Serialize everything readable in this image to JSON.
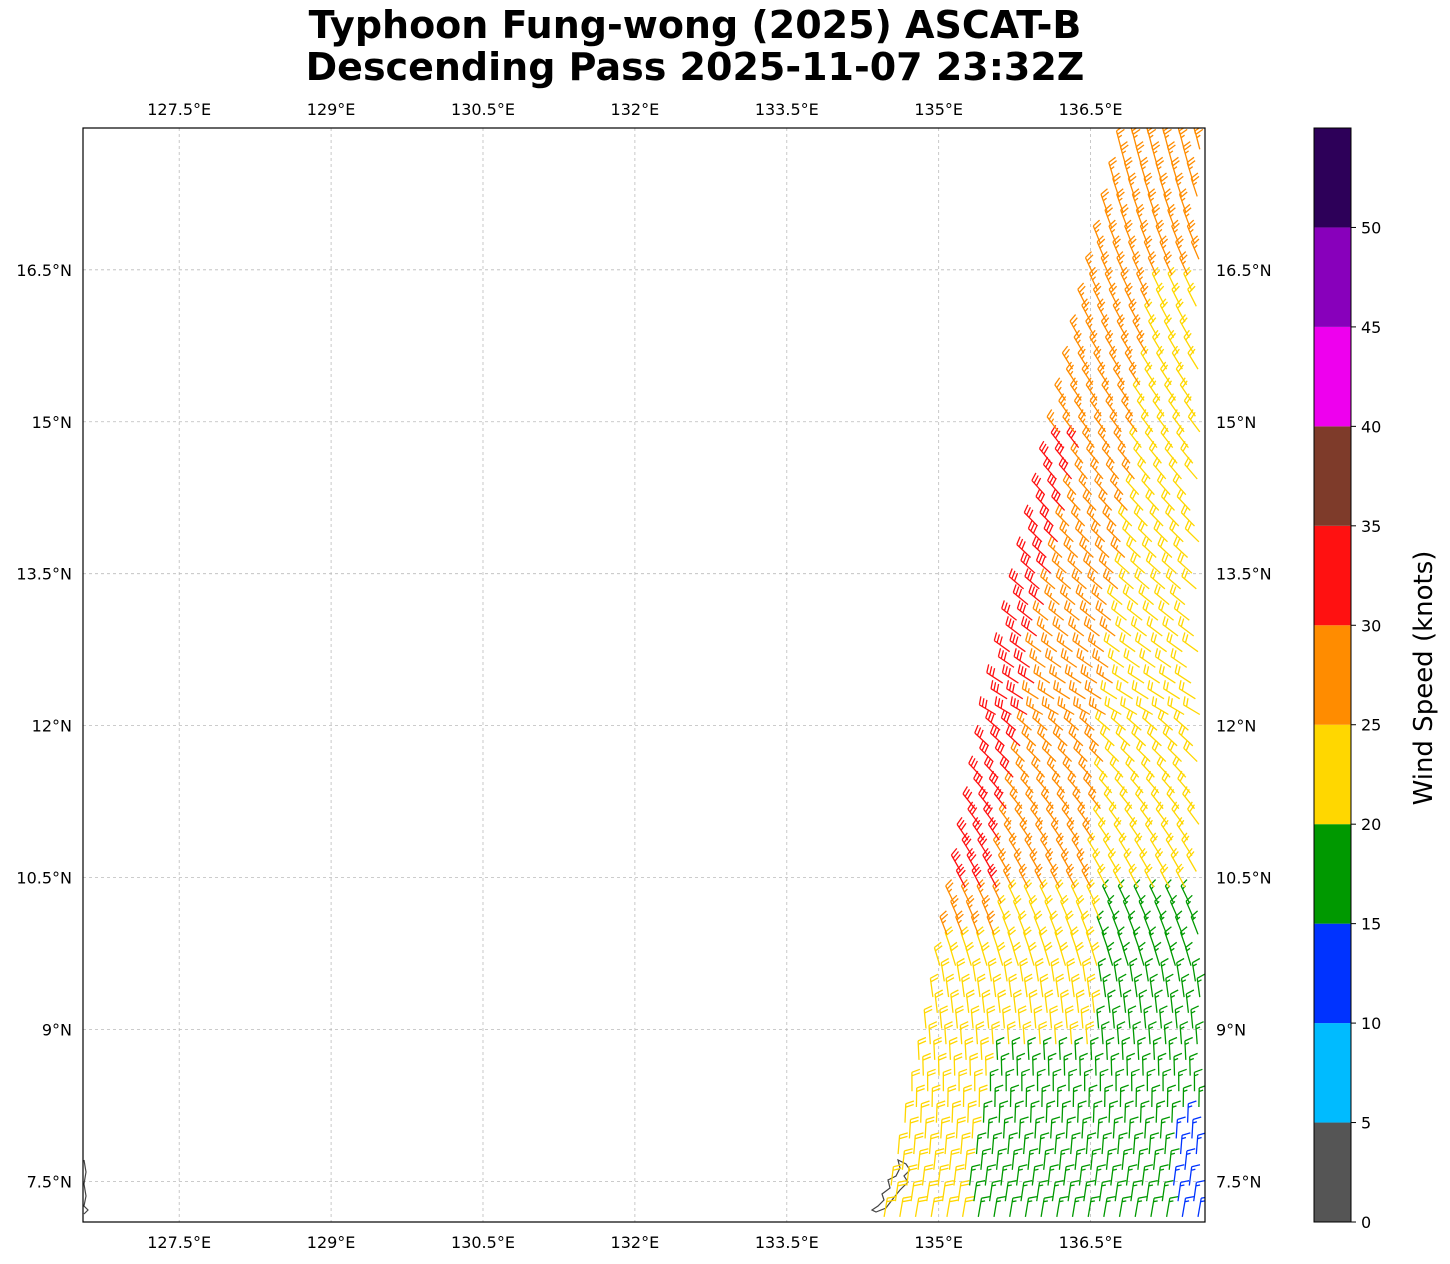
{
  "title": {
    "line1": "Typhoon Fung-wong (2025) ASCAT-B",
    "line2": "Descending Pass 2025-11-07 23:32Z"
  },
  "chart_data": {
    "type": "map",
    "x_ticks": [
      "127.5°E",
      "129°E",
      "130.5°E",
      "132°E",
      "133.5°E",
      "135°E",
      "136.5°E"
    ],
    "x_tick_values": [
      127.5,
      129,
      130.5,
      132,
      133.5,
      135,
      136.5
    ],
    "y_ticks": [
      "7.5°N",
      "9°N",
      "10.5°N",
      "12°N",
      "13.5°N",
      "15°N",
      "16.5°N"
    ],
    "y_tick_values": [
      7.5,
      9,
      10.5,
      12,
      13.5,
      15,
      16.5
    ],
    "lon_range": [
      126.55,
      137.63
    ],
    "lat_range": [
      7.1,
      17.9
    ],
    "grid": true,
    "colorbar": {
      "label": "Wind Speed (knots)",
      "ticks": [
        "0",
        "5",
        "10",
        "15",
        "20",
        "25",
        "30",
        "35",
        "40",
        "45",
        "50"
      ],
      "levels": [
        0,
        5,
        10,
        15,
        20,
        25,
        30,
        35,
        40,
        45,
        50,
        55
      ],
      "colors": [
        "#555555",
        "#00bbff",
        "#0033ff",
        "#009900",
        "#ffd700",
        "#ff8c00",
        "#ff1111",
        "#7e3b2a",
        "#ee00ee",
        "#8800bb",
        "#2d0059"
      ]
    },
    "swath": {
      "lat_min": 7.1,
      "lat_max": 17.9,
      "west_edge_lon_at_lat_min": 134.45,
      "west_edge_lon_at_lat_max": 136.85,
      "east_edge_lon": 137.63
    },
    "wind_regions": [
      {
        "speed_kt": 13,
        "description": "light winds near southeast corner"
      },
      {
        "speed_kt": 17,
        "description": "southern swath"
      },
      {
        "speed_kt": 22,
        "description": "central and eastern swath"
      },
      {
        "speed_kt": 27,
        "description": "northern swath"
      },
      {
        "speed_kt": 32,
        "description": "western edge 10.5N-14.8N"
      }
    ]
  }
}
